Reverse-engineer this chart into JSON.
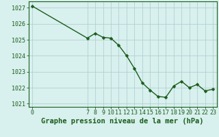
{
  "x": [
    0,
    7,
    8,
    9,
    10,
    11,
    12,
    13,
    14,
    15,
    16,
    17,
    18,
    19,
    20,
    21,
    22,
    23
  ],
  "y": [
    1027.1,
    1025.1,
    1025.4,
    1025.15,
    1025.1,
    1024.65,
    1024.0,
    1023.2,
    1022.3,
    1021.85,
    1021.45,
    1021.4,
    1022.1,
    1022.4,
    1022.0,
    1022.2,
    1021.8,
    1021.9
  ],
  "bg_color": "#d8f0ee",
  "line_color": "#1a5c1a",
  "marker_color": "#1a5c1a",
  "grid_color": "#aacccc",
  "xlabel_ticks": [
    0,
    7,
    8,
    9,
    10,
    11,
    12,
    13,
    14,
    15,
    16,
    17,
    18,
    19,
    20,
    21,
    22,
    23
  ],
  "ylim": [
    1020.8,
    1027.4
  ],
  "yticks": [
    1021,
    1022,
    1023,
    1024,
    1025,
    1026,
    1027
  ],
  "xlim": [
    -0.5,
    23.5
  ],
  "title_color": "#1a5c1a",
  "xlabel_label": "Graphe pression niveau de la mer (hPa)",
  "title_fontsize": 7.5,
  "tick_fontsize": 6.0,
  "line_width": 1.0,
  "marker_size": 2.5
}
